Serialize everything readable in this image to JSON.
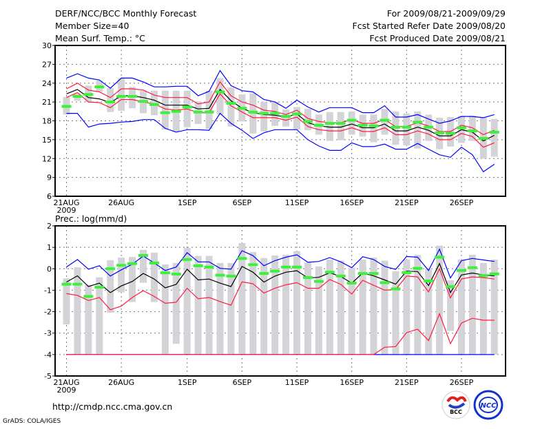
{
  "header": {
    "title": "DERF/NCC/BCC Monthly Forecast",
    "member_size": "Member Size=40",
    "variable": "Mean Surf. Temp.: °C",
    "period": "For 2009/08/21-2009/09/29",
    "started": "Fcst Started Refer Date 2009/08/20",
    "produced": "Fcst Produced Date 2009/08/21"
  },
  "footer": {
    "url": "http://cmdp.ncc.cma.gov.cn",
    "credit": "GrADS: COLA/IGES",
    "logos": [
      "BCC",
      "NCC"
    ]
  },
  "colors": {
    "max_min": "#0000ff",
    "spread": "#ff1a40",
    "mean": "#000000",
    "obs": "#3cf03c",
    "range_bar": "#d4d4d8"
  },
  "chart_data": [
    {
      "type": "line",
      "title": "Mean Surf. Temp.: °C",
      "ylim": [
        6,
        30
      ],
      "yticks": [
        6,
        9,
        12,
        15,
        18,
        21,
        24,
        27,
        30
      ],
      "xtick_days": [
        0,
        5,
        11,
        16,
        21,
        26,
        31,
        36
      ],
      "xtick_labels": [
        "21AUG",
        "26AUG",
        "1SEP",
        "6SEP",
        "11SEP",
        "16SEP",
        "21SEP",
        "26SEP"
      ],
      "year_label": "2009",
      "grid": true,
      "days": 40,
      "series": [
        {
          "name": "max",
          "color": "#0000ff",
          "values": [
            24.8,
            25.5,
            24.8,
            24.5,
            23.2,
            24.8,
            24.8,
            24.2,
            23.4,
            23.4,
            23.5,
            23.5,
            22.0,
            22.7,
            26.0,
            23.6,
            22.8,
            22.6,
            21.4,
            21.0,
            20.0,
            21.3,
            20.2,
            19.4,
            20.1,
            20.1,
            20.1,
            19.3,
            19.3,
            20.4,
            18.6,
            18.6,
            19.0,
            18.3,
            17.6,
            18.0,
            18.7,
            18.7,
            18.5,
            19.0
          ]
        },
        {
          "name": "upper",
          "color": "#ff1a40",
          "values": [
            23.1,
            24.0,
            22.9,
            22.6,
            21.7,
            23.1,
            23.1,
            22.9,
            22.1,
            21.7,
            21.7,
            21.7,
            20.7,
            21.0,
            24.2,
            22.0,
            21.0,
            20.5,
            19.7,
            19.5,
            19.0,
            19.7,
            18.4,
            17.9,
            17.7,
            17.7,
            18.2,
            17.6,
            17.6,
            18.2,
            17.1,
            17.1,
            17.7,
            17.2,
            16.3,
            16.3,
            17.3,
            16.9,
            15.8,
            16.5
          ]
        },
        {
          "name": "mean",
          "color": "#000000",
          "values": [
            22.3,
            23.0,
            21.7,
            21.5,
            20.9,
            22.0,
            22.0,
            21.7,
            21.3,
            20.5,
            20.5,
            20.5,
            19.9,
            20.0,
            23.0,
            21.2,
            20.0,
            19.3,
            19.0,
            18.9,
            18.6,
            19.1,
            17.7,
            17.2,
            17.0,
            17.0,
            17.5,
            16.9,
            16.9,
            17.5,
            16.4,
            16.4,
            17.0,
            16.5,
            15.6,
            15.6,
            16.6,
            16.2,
            14.8,
            15.7
          ]
        },
        {
          "name": "lower",
          "color": "#ff1a40",
          "values": [
            21.7,
            22.5,
            21.0,
            20.9,
            20.1,
            21.4,
            21.4,
            21.0,
            20.7,
            19.9,
            19.7,
            19.9,
            19.3,
            19.3,
            22.3,
            20.4,
            19.4,
            18.5,
            18.5,
            18.5,
            18.1,
            18.6,
            17.1,
            16.6,
            16.4,
            16.4,
            16.9,
            16.3,
            16.3,
            16.9,
            15.8,
            15.8,
            16.4,
            15.9,
            15.0,
            15.0,
            16.0,
            15.5,
            13.8,
            14.5
          ]
        },
        {
          "name": "min",
          "color": "#0000ff",
          "values": [
            19.2,
            19.2,
            17.0,
            17.5,
            17.6,
            17.8,
            17.9,
            18.2,
            18.2,
            16.8,
            16.2,
            16.6,
            16.6,
            16.5,
            19.2,
            17.6,
            16.5,
            15.2,
            16.1,
            16.6,
            16.6,
            16.6,
            15.0,
            14.0,
            13.3,
            13.3,
            14.5,
            13.9,
            13.9,
            14.3,
            13.5,
            13.5,
            14.4,
            13.5,
            12.6,
            12.2,
            13.8,
            12.6,
            9.9,
            11.1
          ]
        }
      ],
      "obs": [
        20.3,
        21.9,
        22.2,
        23.4,
        21.0,
        21.9,
        21.9,
        21.1,
        20.6,
        19.3,
        19.5,
        20.2,
        19.4,
        19.4,
        22.6,
        20.8,
        20.0,
        19.4,
        19.2,
        19.2,
        18.7,
        19.1,
        17.9,
        17.3,
        17.6,
        17.6,
        18.1,
        17.3,
        17.2,
        18.1,
        17.0,
        17.0,
        17.8,
        17.0,
        16.1,
        16.0,
        16.9,
        16.4,
        15.2,
        16.2
      ],
      "range_low": [
        19.0,
        21.2,
        21.0,
        22.6,
        19.4,
        19.6,
        20.0,
        19.2,
        18.9,
        16.6,
        16.3,
        17.0,
        17.5,
        16.7,
        19.0,
        17.1,
        17.9,
        16.0,
        16.3,
        17.2,
        17.1,
        16.6,
        16.5,
        15.8,
        14.8,
        14.9,
        15.8,
        15.5,
        14.6,
        15.8,
        14.2,
        14.1,
        13.6,
        14.8,
        13.5,
        13.9,
        14.5,
        14.8,
        12.0,
        12.3
      ],
      "range_high": [
        21.8,
        22.3,
        23.6,
        24.4,
        23.2,
        24.8,
        23.4,
        22.8,
        22.8,
        22.8,
        22.8,
        22.8,
        21.1,
        22.8,
        24.8,
        23.3,
        22.2,
        22.4,
        21.0,
        21.0,
        19.8,
        20.2,
        19.9,
        19.0,
        19.4,
        19.4,
        19.5,
        19.0,
        19.0,
        19.9,
        19.5,
        19.2,
        19.5,
        19.0,
        18.5,
        18.6,
        18.8,
        18.8,
        18.6,
        18.3
      ]
    },
    {
      "type": "line",
      "title": "Prec.: log(mm/d)",
      "ylim": [
        -5,
        2
      ],
      "yticks": [
        -5,
        -4,
        -3,
        -2,
        -1,
        0,
        1,
        2
      ],
      "xtick_days": [
        0,
        5,
        11,
        16,
        21,
        26,
        31,
        36
      ],
      "xtick_labels": [
        "21AUG",
        "26AUG",
        "1SEP",
        "6SEP",
        "11SEP",
        "16SEP",
        "21SEP",
        "26SEP"
      ],
      "year_label": "2009",
      "grid": true,
      "days": 40,
      "series": [
        {
          "name": "max",
          "color": "#0000ff",
          "values": [
            0.08,
            0.43,
            -0.02,
            0.14,
            -0.34,
            -0.05,
            0.21,
            0.59,
            0.27,
            -0.08,
            0.08,
            0.75,
            0.32,
            0.32,
            0.02,
            -0.02,
            0.84,
            0.61,
            0.14,
            0.38,
            0.54,
            0.65,
            0.3,
            0.34,
            0.52,
            0.32,
            0.05,
            0.56,
            0.43,
            0.11,
            -0.03,
            0.57,
            0.54,
            -0.08,
            0.91,
            -0.43,
            0.38,
            0.48,
            0.41,
            0.34
          ]
        },
        {
          "name": "mean",
          "color": "#000000",
          "values": [
            -0.62,
            -0.33,
            -0.83,
            -0.67,
            -1.11,
            -0.8,
            -0.59,
            -0.22,
            -0.48,
            -0.89,
            -0.73,
            -0.02,
            -0.52,
            -0.48,
            -0.67,
            -0.83,
            0.11,
            -0.16,
            -0.62,
            -0.34,
            -0.16,
            -0.09,
            -0.43,
            -0.4,
            -0.19,
            -0.36,
            -0.67,
            -0.2,
            -0.33,
            -0.52,
            -0.72,
            -0.11,
            -0.13,
            -0.78,
            0.24,
            -1.11,
            -0.29,
            -0.2,
            -0.29,
            -0.33
          ]
        },
        {
          "name": "upper",
          "color": "#ff1a40",
          "values": [
            -1.16,
            -1.24,
            -1.48,
            -1.34,
            -1.91,
            -1.74,
            -1.34,
            -1.02,
            -1.29,
            -1.61,
            -1.56,
            -0.91,
            -1.4,
            -1.34,
            -1.53,
            -1.7,
            -0.61,
            -0.7,
            -1.13,
            -0.91,
            -0.75,
            -0.65,
            -0.91,
            -0.91,
            -0.5,
            -0.73,
            -1.18,
            -0.54,
            -0.77,
            -1.0,
            -0.97,
            -0.34,
            -0.38,
            -1.08,
            0.0,
            -1.36,
            -0.48,
            -0.38,
            -0.41,
            -0.48
          ]
        },
        {
          "name": "min",
          "color": "#0000ff",
          "values": [
            -4,
            -4,
            -4,
            -4,
            -4,
            -4,
            -4,
            -4,
            -4,
            -4,
            -4,
            -4,
            -4,
            -4,
            -4,
            -4,
            -4,
            -4,
            -4,
            -4,
            -4,
            -4,
            -4,
            -4,
            -4,
            -4,
            -4,
            -4,
            -4,
            -4,
            -4,
            -4,
            -4,
            -4,
            -4,
            -4,
            -4,
            -4,
            -4,
            -4
          ]
        },
        {
          "name": "lower",
          "color": "#ff1a40",
          "values": [
            -4,
            -4,
            -4,
            -4,
            -4,
            -4,
            -4,
            -4,
            -4,
            -4,
            -4,
            -4,
            -4,
            -4,
            -4,
            -4,
            -4,
            -4,
            -4,
            -4,
            -4,
            -4,
            -4,
            -4,
            -4,
            -4,
            -4,
            -4,
            -4,
            -3.66,
            -3.63,
            -2.98,
            -2.82,
            -3.35,
            -2.1,
            -3.49,
            -2.53,
            -2.31,
            -2.4,
            -2.4
          ]
        }
      ],
      "obs": [
        -0.72,
        -0.72,
        -1.29,
        -0.86,
        0.0,
        0.16,
        0.24,
        0.62,
        0.27,
        -0.19,
        -0.25,
        0.43,
        0.14,
        0.08,
        -0.3,
        -0.34,
        0.48,
        0.19,
        -0.22,
        -0.11,
        0.08,
        0.08,
        -0.41,
        -0.59,
        -0.16,
        -0.34,
        -0.67,
        -0.22,
        -0.22,
        -0.65,
        -0.94,
        -0.18,
        0.02,
        -0.57,
        0.54,
        -0.83,
        -0.08,
        0.05,
        -0.32,
        -0.24
      ],
      "range_low": [
        -2.6,
        -4,
        -4,
        -4,
        -2.05,
        -1.1,
        -1.55,
        -0.65,
        -1.55,
        -4,
        -3.5,
        -4,
        -4,
        -4,
        -4,
        -4,
        -4,
        -4,
        -4,
        -4,
        -4,
        -4,
        -4,
        -4,
        -4,
        -4,
        -4,
        -4,
        -4,
        -4,
        -4,
        -4,
        -4,
        -4,
        -4,
        -2.9,
        -4,
        -4,
        -4,
        -4
      ],
      "range_high": [
        -0.45,
        0.07,
        -0.75,
        -0.4,
        0.4,
        0.52,
        0.55,
        0.88,
        0.75,
        0.2,
        0.27,
        0.97,
        0.6,
        0.6,
        0.27,
        0.27,
        1.2,
        0.78,
        0.5,
        0.62,
        0.65,
        0.82,
        0.29,
        0.11,
        0.43,
        0.38,
        0.05,
        0.43,
        0.52,
        0.38,
        -0.11,
        0.43,
        0.65,
        0.0,
        1.08,
        -0.54,
        0.43,
        0.65,
        0.27,
        0.43
      ]
    }
  ]
}
